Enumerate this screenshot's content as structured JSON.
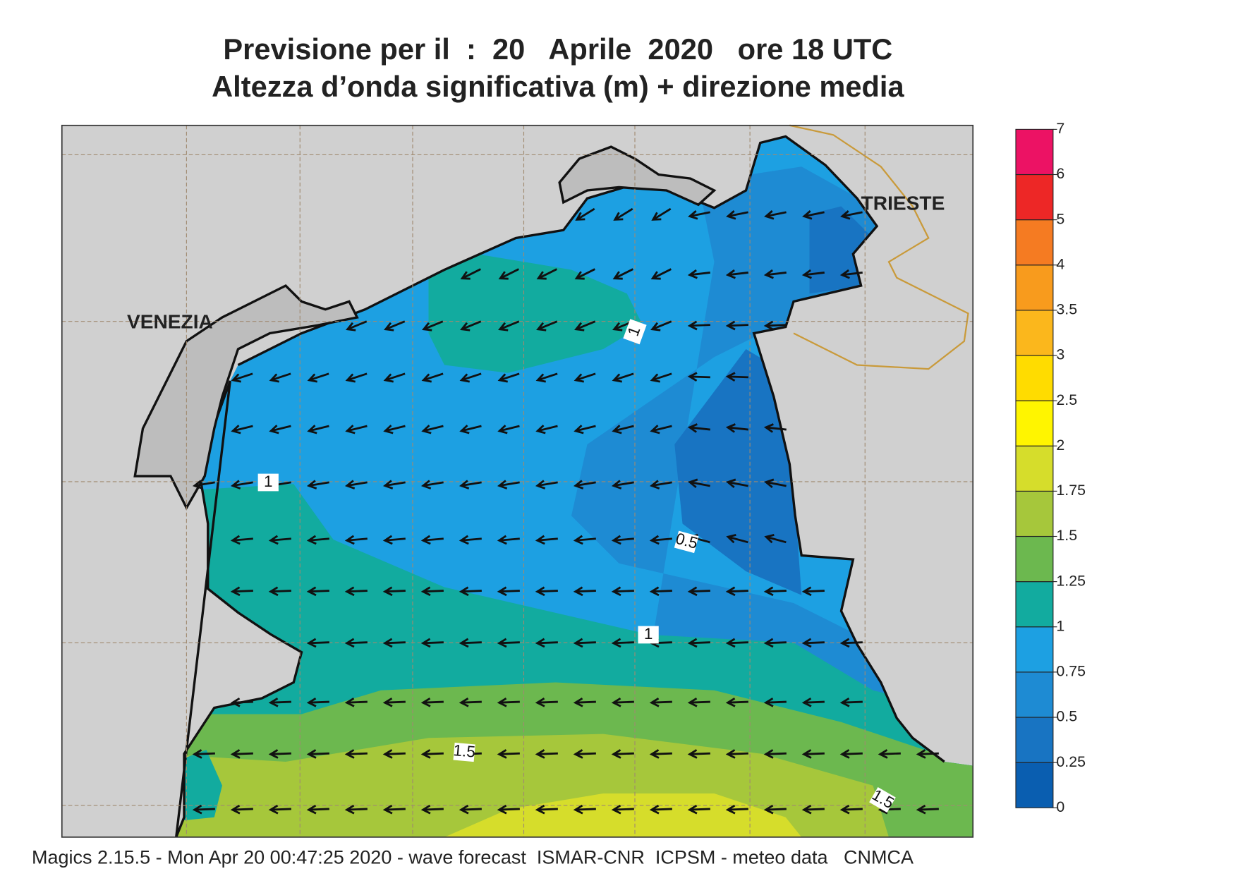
{
  "header": {
    "title": "Previsione per il  :  20   Aprile  2020   ore 18 UTC",
    "subtitle": "Altezza d’onda significativa (m) + direzione media"
  },
  "map": {
    "place_labels": [
      "VENEZIA",
      "TRIESTE"
    ],
    "contour_labels": [
      1,
      1,
      0.5,
      1,
      1.5,
      1.5
    ]
  },
  "colorbar": {
    "levels": [
      0,
      0.25,
      0.5,
      0.75,
      1,
      1.25,
      1.5,
      1.75,
      2,
      2.5,
      3,
      3.5,
      4,
      5,
      6,
      7
    ],
    "colors": [
      "#0a5eb0",
      "#1874c2",
      "#1e8bd3",
      "#1da0e2",
      "#12ab9f",
      "#6cb84f",
      "#a6c73b",
      "#d6dd2b",
      "#fff500",
      "#ffdc00",
      "#fbb71c",
      "#f89b1d",
      "#f57b22",
      "#ed2726",
      "#ec1264"
    ]
  },
  "footer": "Magics 2.15.5 - Mon Apr 20 00:47:25 2020 - wave forecast  ISMAR-CNR  ICPSM - meteo data   CNMCA"
}
